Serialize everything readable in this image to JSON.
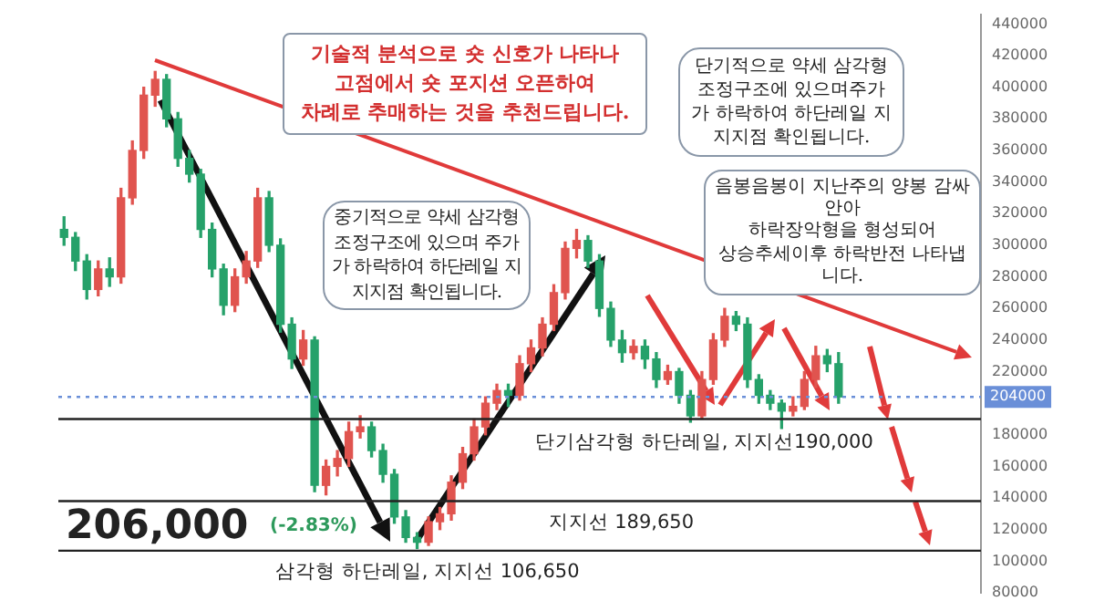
{
  "chart_data": {
    "type": "candlestick",
    "categories": [
      null,
      null,
      null,
      null,
      null,
      null,
      null,
      null,
      null,
      null,
      null,
      null,
      null,
      null,
      null,
      null,
      null,
      null,
      null,
      null,
      null,
      null,
      null,
      null,
      null,
      null,
      null,
      null,
      null,
      null,
      null,
      null,
      null,
      null,
      null,
      null,
      null,
      null,
      null,
      null,
      null,
      null,
      null,
      null,
      null,
      null,
      null,
      null,
      null,
      null,
      null,
      null,
      null,
      null,
      null,
      null,
      null,
      null,
      null,
      null,
      null,
      null,
      null,
      null,
      null,
      null,
      null,
      null,
      null,
      null,
      null,
      null,
      null,
      null,
      null,
      null,
      null,
      null,
      null,
      null,
      null
    ],
    "ohlc": [
      [
        310000,
        318000,
        300000,
        305000
      ],
      [
        305000,
        308000,
        284000,
        290000
      ],
      [
        290000,
        294000,
        266000,
        272000
      ],
      [
        272000,
        290000,
        268000,
        285000
      ],
      [
        285000,
        292000,
        274000,
        280000
      ],
      [
        280000,
        336000,
        276000,
        330000
      ],
      [
        330000,
        366000,
        326000,
        360000
      ],
      [
        360000,
        400000,
        355000,
        395000
      ],
      [
        395000,
        410000,
        388000,
        405000
      ],
      [
        405000,
        408000,
        375000,
        380000
      ],
      [
        380000,
        384000,
        350000,
        355000
      ],
      [
        355000,
        360000,
        340000,
        345000
      ],
      [
        345000,
        348000,
        305000,
        310000
      ],
      [
        310000,
        314000,
        280000,
        285000
      ],
      [
        285000,
        288000,
        256000,
        262000
      ],
      [
        262000,
        285000,
        258000,
        280000
      ],
      [
        280000,
        296000,
        276000,
        290000
      ],
      [
        290000,
        336000,
        286000,
        330000
      ],
      [
        330000,
        334000,
        296000,
        300000
      ],
      [
        300000,
        304000,
        245000,
        250000
      ],
      [
        250000,
        254000,
        222000,
        228000
      ],
      [
        228000,
        246000,
        224000,
        240000
      ],
      [
        240000,
        242000,
        144000,
        148000
      ],
      [
        148000,
        164000,
        142000,
        160000
      ],
      [
        160000,
        170000,
        154000,
        165000
      ],
      [
        165000,
        188000,
        160000,
        182000
      ],
      [
        182000,
        192000,
        178000,
        185000
      ],
      [
        185000,
        188000,
        166000,
        170000
      ],
      [
        170000,
        174000,
        150000,
        155000
      ],
      [
        155000,
        158000,
        124000,
        128000
      ],
      [
        128000,
        132000,
        112000,
        115000
      ],
      [
        115000,
        118000,
        108000,
        112000
      ],
      [
        112000,
        128000,
        110000,
        125000
      ],
      [
        125000,
        134000,
        120000,
        130000
      ],
      [
        130000,
        154000,
        126000,
        150000
      ],
      [
        150000,
        172000,
        146000,
        168000
      ],
      [
        168000,
        190000,
        164000,
        185000
      ],
      [
        185000,
        204000,
        180000,
        200000
      ],
      [
        200000,
        212000,
        196000,
        208000
      ],
      [
        208000,
        212000,
        198000,
        205000
      ],
      [
        205000,
        230000,
        202000,
        225000
      ],
      [
        225000,
        240000,
        220000,
        235000
      ],
      [
        235000,
        254000,
        230000,
        250000
      ],
      [
        250000,
        275000,
        246000,
        270000
      ],
      [
        270000,
        302000,
        266000,
        298000
      ],
      [
        298000,
        310000,
        292000,
        303000
      ],
      [
        303000,
        306000,
        286000,
        290000
      ],
      [
        290000,
        294000,
        255000,
        260000
      ],
      [
        260000,
        264000,
        236000,
        240000
      ],
      [
        240000,
        246000,
        226000,
        232000
      ],
      [
        232000,
        240000,
        228000,
        236000
      ],
      [
        236000,
        240000,
        222000,
        228000
      ],
      [
        228000,
        232000,
        210000,
        215000
      ],
      [
        215000,
        224000,
        212000,
        220000
      ],
      [
        220000,
        222000,
        200000,
        205000
      ],
      [
        205000,
        208000,
        188000,
        192000
      ],
      [
        192000,
        220000,
        190000,
        215000
      ],
      [
        215000,
        244000,
        212000,
        240000
      ],
      [
        240000,
        260000,
        236000,
        255000
      ],
      [
        255000,
        258000,
        246000,
        250000
      ],
      [
        250000,
        254000,
        210000,
        215000
      ],
      [
        215000,
        218000,
        200000,
        205000
      ],
      [
        205000,
        208000,
        196000,
        200000
      ],
      [
        200000,
        202000,
        184000,
        195000
      ],
      [
        195000,
        204000,
        192000,
        198000
      ],
      [
        198000,
        220000,
        196000,
        215000
      ],
      [
        215000,
        236000,
        210000,
        230000
      ],
      [
        230000,
        234000,
        220000,
        225000
      ],
      [
        225000,
        232000,
        200000,
        204000
      ],
      null,
      null,
      null,
      null,
      null,
      null,
      null,
      null,
      null,
      null,
      null,
      null
    ],
    "ylim": [
      80000,
      446000
    ],
    "yticks": [
      80000,
      100000,
      120000,
      140000,
      160000,
      180000,
      220000,
      240000,
      260000,
      280000,
      300000,
      320000,
      340000,
      360000,
      380000,
      400000,
      420000,
      440000
    ],
    "ref_lines": [
      {
        "axis": "y",
        "value": 204000,
        "label": "204000",
        "color": "#6a8fd8",
        "line_style": "dotted"
      },
      {
        "axis": "y",
        "value": 190000,
        "label": "단기삼각형 하단레일, 지지선190,000",
        "color": "#222222",
        "line_style": "solid"
      },
      {
        "axis": "y",
        "value": 138000,
        "label": "지지선 189,650",
        "color": "#222222",
        "line_style": "solid"
      },
      {
        "axis": "y",
        "value": 106650,
        "label": "삼각형 하단레일, 지지선 106,650",
        "color": "#222222",
        "line_style": "solid"
      }
    ],
    "annotations": [
      "기술적 분석으로 숏 신호가 나타나\n고점에서 숏 포지션 오픈하여\n차례로 추매하는 것을 추천드립니다.",
      "중기적으로 약세 삼각형\n조정구조에 있으며 주가\n가 하락하여 하단레일 지\n지지점 확인됩니다.",
      "단기적으로 약세 삼각형\n조정구조에 있으며주가\n가 하락하여 하단레일 지\n지지점 확인됩니다.",
      "음봉음봉이 지난주의 양봉 감싸안아\n하락장악형을 형성되어\n상승추세이후 하락반전 나타냅니다.",
      "206,000",
      "(-2.83%)"
    ],
    "grid": false,
    "legend": false
  }
}
